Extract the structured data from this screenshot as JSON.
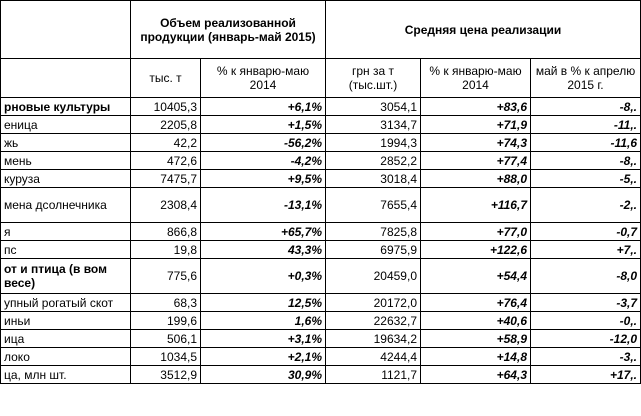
{
  "table": {
    "header": {
      "volume": "Объем реализованной продукции (январь-май 2015)",
      "price": "Средняя цена реализации"
    },
    "columns": [
      "тыс. т",
      "% к январю-маю 2014",
      "грн за т (тыс.шт.)",
      "% к январю-маю 2014",
      "май в % к апрелю 2015 г."
    ],
    "rows": [
      [
        "рновые культуры",
        "10405,3",
        "+6,1%",
        "3054,1",
        "+83,6",
        "-8,."
      ],
      [
        "еница",
        "2205,8",
        "+1,5%",
        "3134,7",
        "+71,9",
        "-11,."
      ],
      [
        "жь",
        "42,2",
        "-56,2%",
        "1994,3",
        "+74,3",
        "-11,6"
      ],
      [
        "мень",
        "472,6",
        "-4,2%",
        "2852,2",
        "+77,4",
        "-8,."
      ],
      [
        "куруза",
        "7475,7",
        "+9,5%",
        "3018,4",
        "+88,0",
        "-5,."
      ],
      [
        "мена дсолнечника",
        "2308,4",
        "-13,1%",
        "7655,4",
        "+116,7",
        "-2,."
      ],
      [
        "я",
        "866,8",
        "+65,7%",
        "7825,8",
        "+77,0",
        "-0,7"
      ],
      [
        "пс",
        "19,8",
        "43,3%",
        "6975,9",
        "+122,6",
        "+7,."
      ],
      [
        "от и птица (в вом весе)",
        "775,6",
        "+0,3%",
        "20459,0",
        "+54,4",
        "-8,0"
      ],
      [
        "упный рогатый скот",
        "68,3",
        "12,5%",
        "20172,0",
        "+76,4",
        "-3,7"
      ],
      [
        "иньи",
        "199,6",
        "1,6%",
        "22632,7",
        "+40,6",
        "-0,."
      ],
      [
        "ица",
        "506,1",
        "+3,1%",
        "19634,2",
        "+58,9",
        "-12,0"
      ],
      [
        "локо",
        "1034,5",
        "+2,1%",
        "4244,4",
        "+14,8",
        "-3,."
      ],
      [
        "ца, млн шт.",
        "3512,9",
        "30,9%",
        "1121,7",
        "+64,3",
        "+17,."
      ]
    ]
  }
}
